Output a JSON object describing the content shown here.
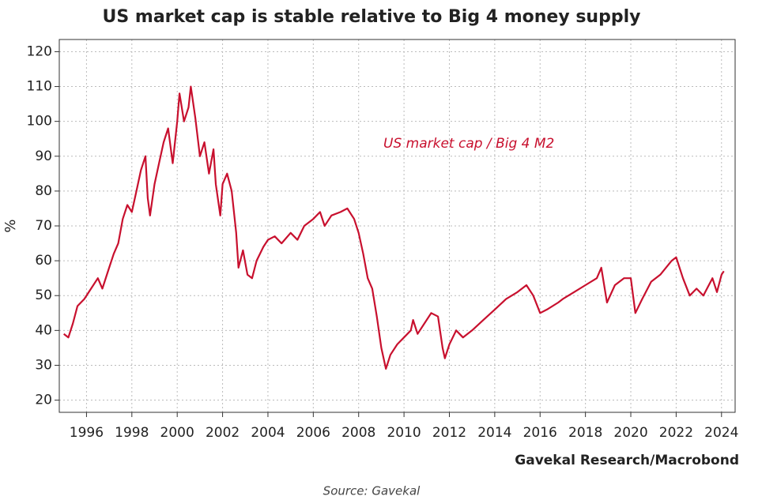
{
  "chart_data": {
    "type": "line",
    "title": "US market cap is stable relative to Big 4 money supply",
    "y_label": "%",
    "credit": "Gavekal Research/Macrobond",
    "source": "Source: Gavekal",
    "x": [
      1995.0,
      1995.2,
      1995.4,
      1995.6,
      1995.9,
      1996.2,
      1996.5,
      1996.7,
      1997.0,
      1997.2,
      1997.4,
      1997.6,
      1997.8,
      1998.0,
      1998.2,
      1998.4,
      1998.6,
      1998.7,
      1998.8,
      1999.0,
      1999.2,
      1999.4,
      1999.6,
      1999.8,
      2000.0,
      2000.1,
      2000.3,
      2000.5,
      2000.6,
      2000.8,
      2001.0,
      2001.2,
      2001.4,
      2001.6,
      2001.7,
      2001.9,
      2002.0,
      2002.2,
      2002.4,
      2002.6,
      2002.7,
      2002.9,
      2003.1,
      2003.3,
      2003.5,
      2003.8,
      2004.0,
      2004.3,
      2004.6,
      2005.0,
      2005.3,
      2005.6,
      2006.0,
      2006.3,
      2006.5,
      2006.8,
      2007.2,
      2007.5,
      2007.8,
      2008.0,
      2008.2,
      2008.4,
      2008.6,
      2008.8,
      2009.0,
      2009.1,
      2009.2,
      2009.4,
      2009.7,
      2010.0,
      2010.3,
      2010.4,
      2010.6,
      2010.9,
      2011.2,
      2011.5,
      2011.7,
      2011.8,
      2012.0,
      2012.3,
      2012.6,
      2013.0,
      2013.5,
      2014.0,
      2014.5,
      2015.0,
      2015.4,
      2015.7,
      2016.0,
      2016.3,
      2016.8,
      2017.0,
      2017.5,
      2018.0,
      2018.5,
      2018.7,
      2018.95,
      2019.3,
      2019.7,
      2020.0,
      2020.2,
      2020.5,
      2020.9,
      2021.3,
      2021.8,
      2022.0,
      2022.3,
      2022.6,
      2022.9,
      2023.2,
      2023.6,
      2023.8,
      2024.0,
      2024.1
    ],
    "series": [
      {
        "name": "US market cap / Big 4 M2",
        "color": "#c8102e",
        "values": [
          39,
          38,
          42,
          47,
          49,
          52,
          55,
          52,
          58,
          62,
          65,
          72,
          76,
          74,
          80,
          86,
          90,
          78,
          73,
          82,
          88,
          94,
          98,
          88,
          100,
          108,
          100,
          104,
          110,
          101,
          90,
          94,
          85,
          92,
          82,
          73,
          82,
          85,
          80,
          68,
          58,
          63,
          56,
          55,
          60,
          64,
          66,
          67,
          65,
          68,
          66,
          70,
          72,
          74,
          70,
          73,
          74,
          75,
          72,
          68,
          62,
          55,
          52,
          44,
          35,
          32,
          29,
          33,
          36,
          38,
          40,
          43,
          39,
          42,
          45,
          44,
          35,
          32,
          36,
          40,
          38,
          40,
          43,
          46,
          49,
          51,
          53,
          50,
          45,
          46,
          48,
          49,
          51,
          53,
          55,
          58,
          48,
          53,
          55,
          55,
          45,
          49,
          54,
          56,
          60,
          61,
          55,
          50,
          52,
          50,
          55,
          51,
          56,
          57
        ]
      }
    ],
    "xlim": [
      1994.8,
      2024.6
    ],
    "ylim": [
      16.5,
      123.5
    ],
    "xticks": [
      1996,
      1998,
      2000,
      2002,
      2004,
      2006,
      2008,
      2010,
      2012,
      2014,
      2016,
      2018,
      2020,
      2022,
      2024
    ],
    "yticks": [
      20,
      30,
      40,
      50,
      60,
      70,
      80,
      90,
      100,
      110,
      120
    ],
    "grid": true
  }
}
